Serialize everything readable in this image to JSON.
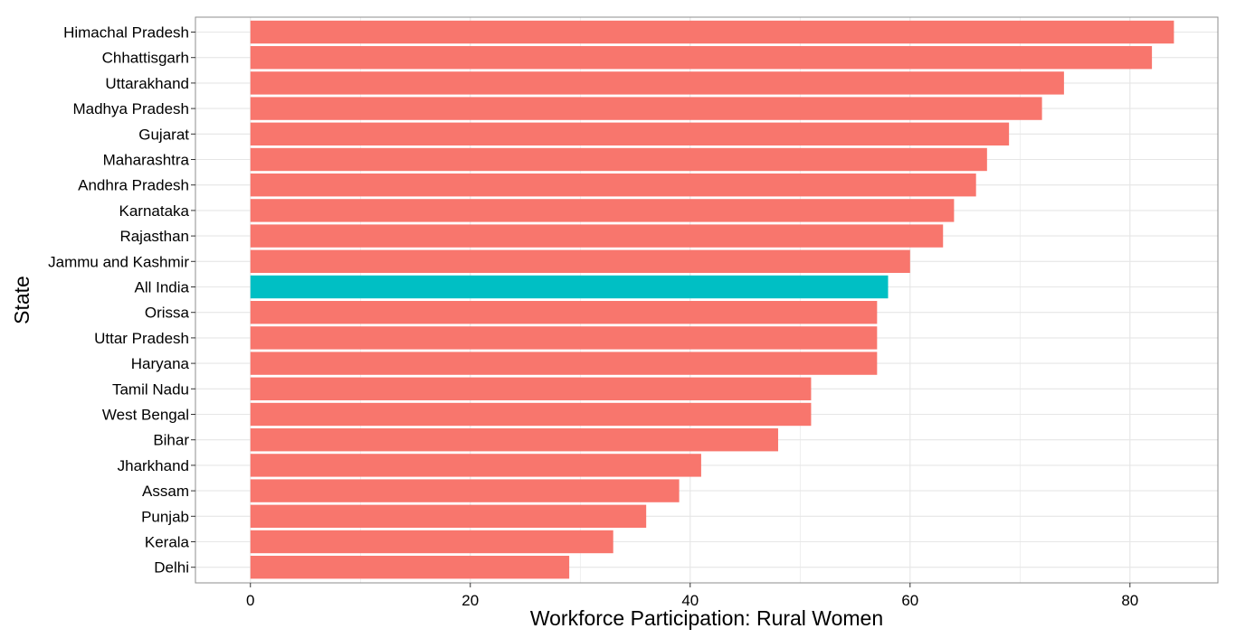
{
  "chart_data": {
    "type": "bar",
    "orientation": "horizontal",
    "xlabel": "Workforce Participation: Rural Women",
    "ylabel": "State",
    "xlim": [
      -5,
      88
    ],
    "x_ticks": [
      0,
      20,
      40,
      60,
      80
    ],
    "grid": true,
    "legend": "none",
    "colors": {
      "default": "#F8766D",
      "highlight": "#00BFC4",
      "grid": "#E6E6E6",
      "border": "#8C8C8C"
    },
    "categories": [
      "Himachal Pradesh",
      "Chhattisgarh",
      "Uttarakhand",
      "Madhya Pradesh",
      "Gujarat",
      "Maharashtra",
      "Andhra Pradesh",
      "Karnataka",
      "Rajasthan",
      "Jammu and Kashmir",
      "All India",
      "Orissa",
      "Uttar Pradesh",
      "Haryana",
      "Tamil Nadu",
      "West Bengal",
      "Bihar",
      "Jharkhand",
      "Assam",
      "Punjab",
      "Kerala",
      "Delhi"
    ],
    "values": [
      84,
      82,
      74,
      72,
      69,
      67,
      66,
      64,
      63,
      60,
      58,
      57,
      57,
      57,
      51,
      51,
      48,
      41,
      39,
      36,
      33,
      29
    ],
    "highlighted": [
      "All India"
    ]
  }
}
